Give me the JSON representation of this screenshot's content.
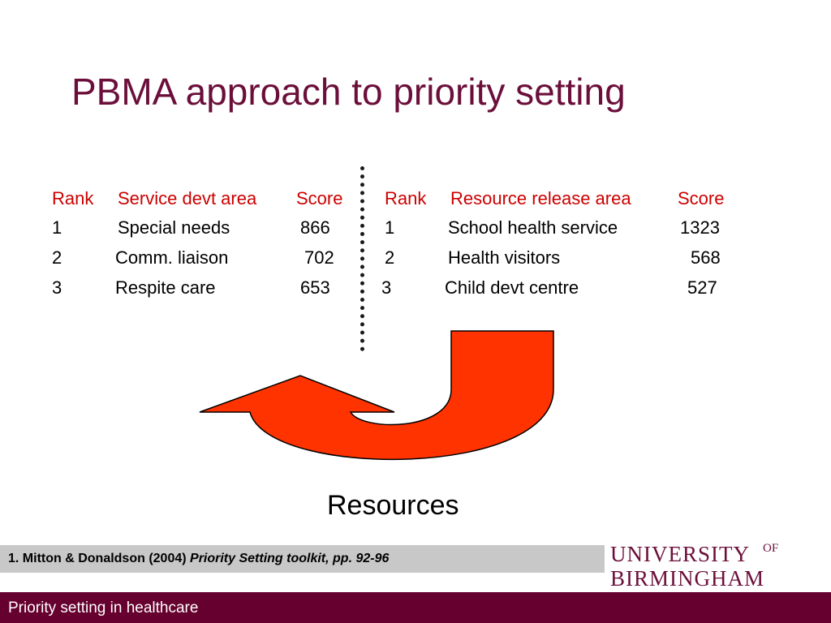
{
  "slide": {
    "title": "PBMA approach to priority setting"
  },
  "service_table": {
    "headers": [
      "Rank",
      "Service devt area",
      "Score"
    ],
    "rows": [
      [
        "1",
        "Special needs",
        "866"
      ],
      [
        "2",
        "Comm. liaison",
        "702"
      ],
      [
        "3",
        "Respite care",
        "653"
      ]
    ]
  },
  "resource_table": {
    "headers": [
      "Rank",
      "Resource release area",
      "Score"
    ],
    "rows": [
      [
        "1",
        "School health service",
        "1323"
      ],
      [
        "2",
        "Health visitors",
        "568"
      ],
      [
        "3",
        "Child devt centre",
        "527"
      ]
    ]
  },
  "diagram": {
    "arrow_label": "Resources",
    "arrow_color": "#ff3300",
    "divider_icon": "dotted-vertical-line"
  },
  "reference": {
    "prefix": "1. Mitton & Donaldson (2004) ",
    "title": "Priority Setting toolkit, pp. 92-96"
  },
  "logo": {
    "line1": "UNIVERSITY",
    "of": "OF",
    "line2": "BIRMINGHAM"
  },
  "footer": {
    "text": "Priority setting in healthcare"
  },
  "colors": {
    "title": "#6b0f3a",
    "header_text": "#cc0000",
    "footer_bg": "#66002e",
    "reference_bg": "#c8c8c8"
  }
}
